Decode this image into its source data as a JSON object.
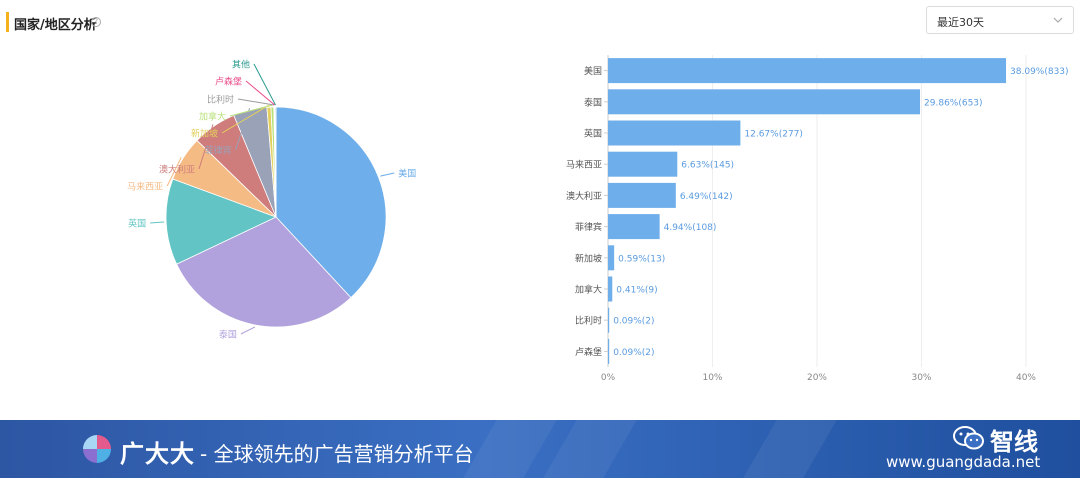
{
  "header": {
    "title": "国家/地区分析",
    "help_glyph": "?",
    "range_select": {
      "value": "最近30天"
    }
  },
  "colors": {
    "accent": "#f5b21b",
    "bar": "#6eaeea",
    "bar_label": "#5a9be0",
    "pie": [
      "#6eaeea",
      "#b1a1dc",
      "#62c4c4",
      "#f5bb85",
      "#ce7c7c",
      "#9aa2b8",
      "#e3cf5c",
      "#b8e07a",
      "#9b9b9b",
      "#e84c8a",
      "#2a9c8f"
    ]
  },
  "chart_data": [
    {
      "type": "pie",
      "categories": [
        "美国",
        "泰国",
        "英国",
        "马来西亚",
        "澳大利亚",
        "菲律宾",
        "新加坡",
        "加拿大",
        "比利时",
        "卢森堡",
        "其他"
      ],
      "values": [
        38.09,
        29.86,
        12.67,
        6.63,
        6.49,
        4.94,
        0.59,
        0.41,
        0.09,
        0.09,
        0.14
      ],
      "legend": "none"
    },
    {
      "type": "bar",
      "orientation": "horizontal",
      "categories": [
        "美国",
        "泰国",
        "英国",
        "马来西亚",
        "澳大利亚",
        "菲律宾",
        "新加坡",
        "加拿大",
        "比利时",
        "卢森堡"
      ],
      "values": [
        38.09,
        29.86,
        12.67,
        6.63,
        6.49,
        4.94,
        0.59,
        0.41,
        0.09,
        0.09
      ],
      "data_labels": [
        "38.09%(833)",
        "29.86%(653)",
        "12.67%(277)",
        "6.63%(145)",
        "6.49%(142)",
        "4.94%(108)",
        "0.59%(13)",
        "0.41%(9)",
        "0.09%(2)",
        "0.09%(2)"
      ],
      "xlim": [
        0,
        40
      ],
      "xticks": [
        "0%",
        "10%",
        "20%",
        "30%",
        "40%"
      ],
      "grid": true
    }
  ],
  "banner": {
    "brand": "广大大",
    "slogan": "- 全球领先的广告营销分析平台",
    "wechat_name": "智线",
    "url": "www.guangdada.net"
  }
}
